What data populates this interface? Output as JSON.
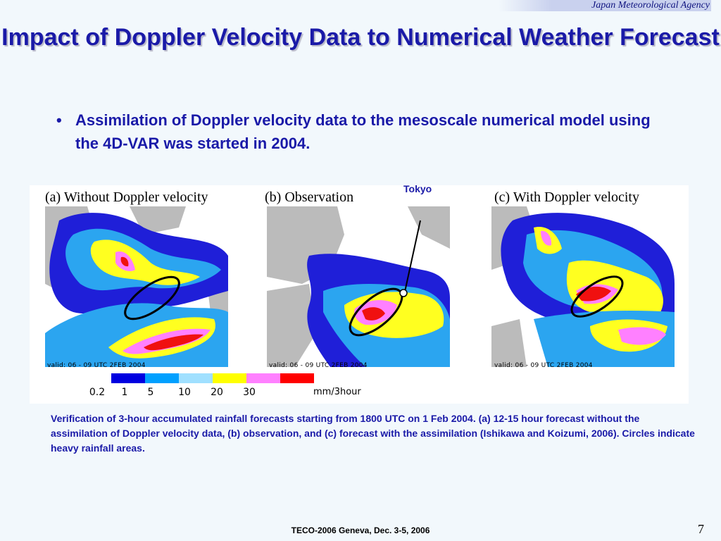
{
  "header": {
    "agency": "Japan Meteorological Agency"
  },
  "slide": {
    "title": "Impact of Doppler Velocity Data to Numerical Weather Forecast",
    "bullets": [
      "Assimilation of Doppler velocity data to the mesoscale numerical model using the 4D-VAR was started in 2004."
    ]
  },
  "figure": {
    "panels": [
      {
        "label": "(a) Without Doppler velocity",
        "valid": "valid: 06 - 09 UTC 2FEB 2004"
      },
      {
        "label": "(b) Observation",
        "valid": "valid: 06 - 09 UTC 2FEB 2004"
      },
      {
        "label": "(c) With Doppler velocity",
        "valid": "valid: 06 - 09 UTC 2FEB 2004"
      }
    ],
    "tokyo_label": "Tokyo",
    "legend": {
      "ticks": [
        "0.2",
        "1",
        "5",
        "10",
        "20",
        "30"
      ],
      "unit": "mm/3hour",
      "colors": [
        "#0000e0",
        "#00a0ff",
        "#a0e0ff",
        "#ffff00",
        "#ff80ff",
        "#ff0000"
      ]
    },
    "colors": {
      "land_gray": "#bbbbbb",
      "blue": "#1f1fd8",
      "cyan": "#2ba5f0",
      "light_cyan": "#9fdcf8",
      "yellow": "#ffff20",
      "pink": "#ff80ff",
      "red": "#f01010",
      "circle": "#000000"
    }
  },
  "caption": "Verification of 3-hour accumulated rainfall forecasts starting from 1800 UTC on 1 Feb 2004.  (a) 12-15 hour forecast without the assimilation of Doppler velocity data, (b) observation, and (c) forecast with the assimilation (Ishikawa and Koizumi, 2006).  Circles indicate heavy rainfall areas.",
  "footer": {
    "text": "TECO-2006 Geneva, Dec. 3-5, 2006",
    "page_number": "7"
  }
}
